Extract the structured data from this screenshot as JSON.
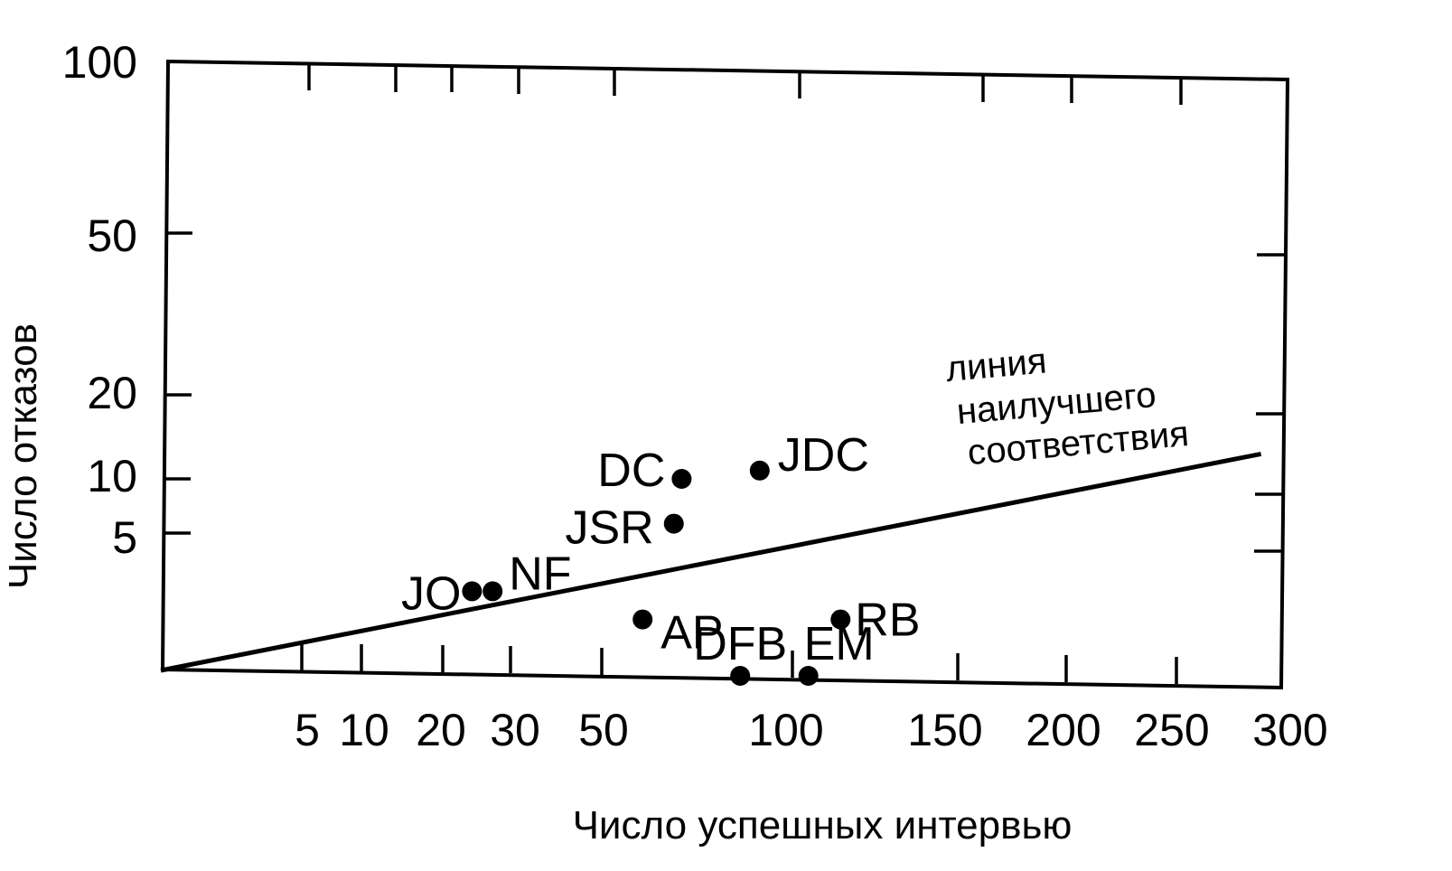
{
  "chart_data": {
    "type": "scatter",
    "title": "",
    "xlabel": "Число успешных интервью",
    "ylabel": "Число отказов",
    "x_tick_labels": [
      "5",
      "10",
      "20",
      "30",
      "50",
      "100",
      "150",
      "200",
      "250",
      "300"
    ],
    "y_tick_labels": [
      "100",
      "50",
      "20",
      "10",
      "5"
    ],
    "grid": false,
    "points": [
      {
        "label": "JO",
        "x": 24,
        "y": 3
      },
      {
        "label": "NF",
        "x": 27,
        "y": 3
      },
      {
        "label": "JSR",
        "x": 68,
        "y": 6
      },
      {
        "label": "DC",
        "x": 70,
        "y": 10
      },
      {
        "label": "AP",
        "x": 60,
        "y": 2
      },
      {
        "label": "JDC",
        "x": 90,
        "y": 11
      },
      {
        "label": "RB",
        "x": 113,
        "y": 2
      },
      {
        "label": "DFB",
        "x": 85,
        "y": 0
      },
      {
        "label": "EM",
        "x": 103,
        "y": 0
      }
    ],
    "fit_line": {
      "label": [
        "линия",
        "наилучшего",
        "соответствия"
      ],
      "from": {
        "x": 0,
        "y": 0
      },
      "to": {
        "x": 290,
        "y": 13
      }
    }
  }
}
